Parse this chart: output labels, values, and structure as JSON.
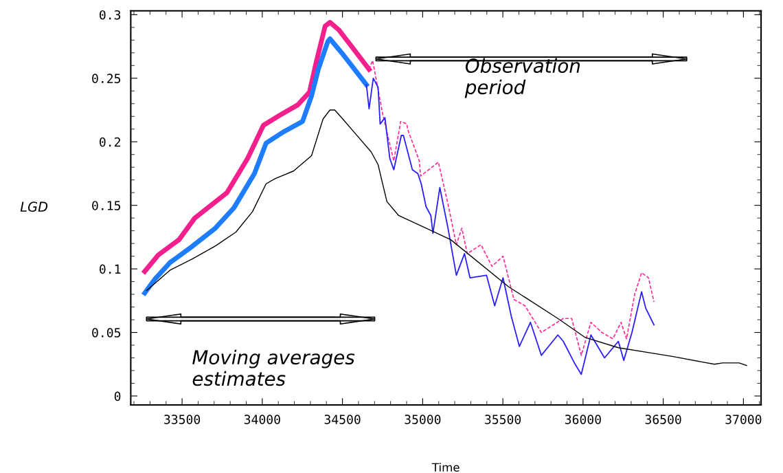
{
  "chart_data": {
    "type": "line",
    "xlabel": "Time",
    "ylabel": "LGD",
    "xlim": [
      33180,
      37110
    ],
    "ylim": [
      -0.007,
      0.303
    ],
    "xticks": [
      33500,
      34000,
      34500,
      35000,
      35500,
      36000,
      36500,
      37000
    ],
    "yticks": [
      0,
      0.05,
      0.1,
      0.15,
      0.2,
      0.25,
      0.3
    ],
    "grid": false,
    "legend": false,
    "annotations": [
      "Observation period",
      "Moving averages estimates"
    ],
    "series": [
      {
        "color": "#f21f8c",
        "line_style": "solid",
        "x": [
          33267,
          33352,
          33481,
          33579,
          33780,
          33909,
          34007,
          34110,
          34221,
          34294,
          34337,
          34392,
          34422,
          34478,
          34563,
          34666
        ],
        "values": [
          0.098,
          0.111,
          0.123,
          0.14,
          0.16,
          0.187,
          0.213,
          0.221,
          0.229,
          0.239,
          0.263,
          0.291,
          0.294,
          0.288,
          0.274,
          0.257
        ]
      },
      {
        "color": "#1e7dff",
        "line_style": "solid",
        "x": [
          33267,
          33331,
          33425,
          33566,
          33707,
          33823,
          33951,
          34024,
          34135,
          34251,
          34307,
          34349,
          34409,
          34422,
          34508,
          34649
        ],
        "values": [
          0.081,
          0.092,
          0.105,
          0.118,
          0.132,
          0.148,
          0.175,
          0.199,
          0.208,
          0.216,
          0.236,
          0.257,
          0.279,
          0.281,
          0.268,
          0.245
        ]
      },
      {
        "color": "#ff2a96",
        "line_style": "dashed",
        "x": [
          34666,
          34688,
          34752,
          34820,
          34863,
          34902,
          34906,
          34979,
          34987,
          35098,
          35158,
          35210,
          35244,
          35278,
          35364,
          35432,
          35501,
          35569,
          35638,
          35740,
          35877,
          35929,
          35989,
          36049,
          36117,
          36186,
          36237,
          36271,
          36322,
          36365,
          36408,
          36442
        ],
        "values": [
          0.257,
          0.264,
          0.221,
          0.185,
          0.216,
          0.214,
          0.21,
          0.185,
          0.173,
          0.184,
          0.151,
          0.119,
          0.132,
          0.112,
          0.119,
          0.102,
          0.11,
          0.076,
          0.071,
          0.05,
          0.061,
          0.061,
          0.032,
          0.058,
          0.05,
          0.045,
          0.058,
          0.045,
          0.08,
          0.097,
          0.093,
          0.074
        ]
      },
      {
        "color": "#2a1fff",
        "line_style": "solid",
        "x": [
          34649,
          34666,
          34692,
          34722,
          34735,
          34765,
          34795,
          34820,
          34867,
          34880,
          34936,
          34970,
          34991,
          35021,
          35051,
          35064,
          35107,
          35158,
          35210,
          35261,
          35295,
          35398,
          35449,
          35501,
          35552,
          35603,
          35672,
          35740,
          35843,
          35877,
          35946,
          35989,
          36049,
          36134,
          36220,
          36254,
          36305,
          36365,
          36391,
          36442
        ],
        "values": [
          0.245,
          0.226,
          0.25,
          0.243,
          0.214,
          0.219,
          0.187,
          0.178,
          0.205,
          0.205,
          0.178,
          0.175,
          0.167,
          0.149,
          0.142,
          0.128,
          0.164,
          0.132,
          0.095,
          0.112,
          0.093,
          0.095,
          0.071,
          0.093,
          0.063,
          0.039,
          0.058,
          0.032,
          0.048,
          0.043,
          0.026,
          0.017,
          0.048,
          0.03,
          0.043,
          0.028,
          0.05,
          0.082,
          0.069,
          0.056
        ]
      },
      {
        "color": "#000000",
        "line_style": "solid",
        "x": [
          33279,
          33425,
          33566,
          33707,
          33836,
          33939,
          34024,
          34080,
          34195,
          34307,
          34379,
          34422,
          34452,
          34508,
          34563,
          34679,
          34722,
          34777,
          34850,
          35021,
          35175,
          35535,
          35843,
          36014,
          36220,
          36562,
          36733,
          36819,
          36870,
          36973,
          37020
        ],
        "values": [
          0.083,
          0.099,
          0.108,
          0.118,
          0.129,
          0.145,
          0.167,
          0.171,
          0.177,
          0.189,
          0.218,
          0.225,
          0.225,
          0.217,
          0.209,
          0.192,
          0.182,
          0.153,
          0.142,
          0.132,
          0.123,
          0.086,
          0.061,
          0.046,
          0.038,
          0.031,
          0.027,
          0.025,
          0.026,
          0.026,
          0.024
        ]
      }
    ]
  }
}
